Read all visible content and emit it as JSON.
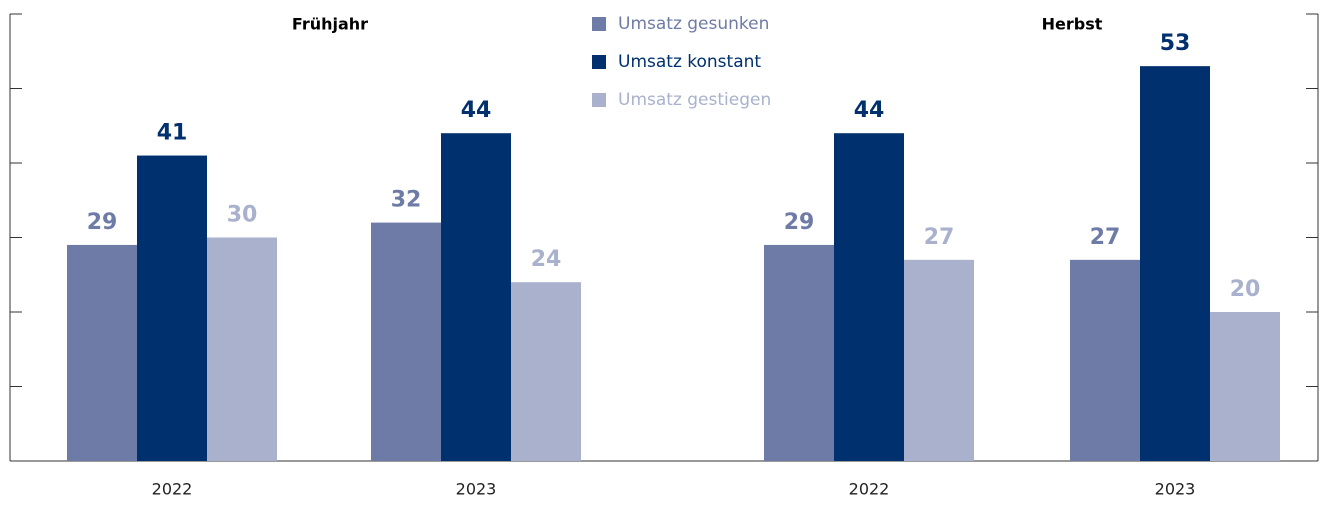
{
  "chart_data": {
    "type": "bar",
    "groups": [
      "Frühjahr",
      "Herbst"
    ],
    "categories": [
      "2022",
      "2023",
      "2022",
      "2023"
    ],
    "series": [
      {
        "name": "Umsatz gesunken",
        "color": "#6e7ba6",
        "values": [
          29,
          32,
          29,
          27
        ]
      },
      {
        "name": "Umsatz konstant",
        "color": "#00306e",
        "values": [
          41,
          44,
          44,
          53
        ]
      },
      {
        "name": "Umsatz gestiegen",
        "color": "#a9b1cd",
        "values": [
          30,
          24,
          27,
          20
        ]
      }
    ],
    "ylim": [
      0,
      60
    ],
    "yticks": [
      0,
      10,
      20,
      30,
      40,
      50,
      60
    ]
  }
}
